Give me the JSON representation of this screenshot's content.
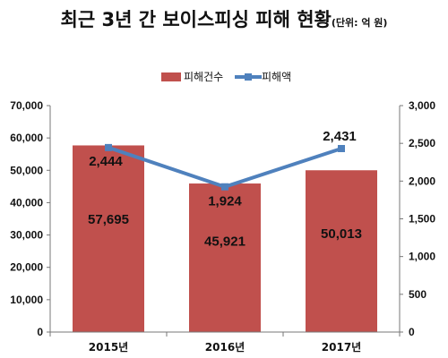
{
  "title": "최근 3년 간 보이스피싱 피해 현황",
  "unit_note": "(단위: 억 원)",
  "chart_data": {
    "type": "bar",
    "categories": [
      "2015년",
      "2016년",
      "2017년"
    ],
    "series": [
      {
        "name": "피해건수",
        "kind": "bar",
        "axis": "left",
        "values": [
          57695,
          45921,
          50013
        ],
        "labels": [
          "57,695",
          "45,921",
          "50,013"
        ],
        "color": "#c0504d"
      },
      {
        "name": "피해액",
        "kind": "line",
        "axis": "right",
        "values": [
          2444,
          1924,
          2431
        ],
        "labels": [
          "2,444",
          "1,924",
          "2,431"
        ],
        "color": "#4f81bd"
      }
    ],
    "y_left": {
      "min": 0,
      "max": 70000,
      "ticks": [
        "0",
        "10,000",
        "20,000",
        "30,000",
        "40,000",
        "50,000",
        "60,000",
        "70,000"
      ]
    },
    "y_right": {
      "min": 0,
      "max": 3000,
      "ticks": [
        "0",
        "500",
        "1,000",
        "1,500",
        "2,000",
        "2,500",
        "3,000"
      ]
    },
    "legend_position": "top-center",
    "grid": false
  }
}
